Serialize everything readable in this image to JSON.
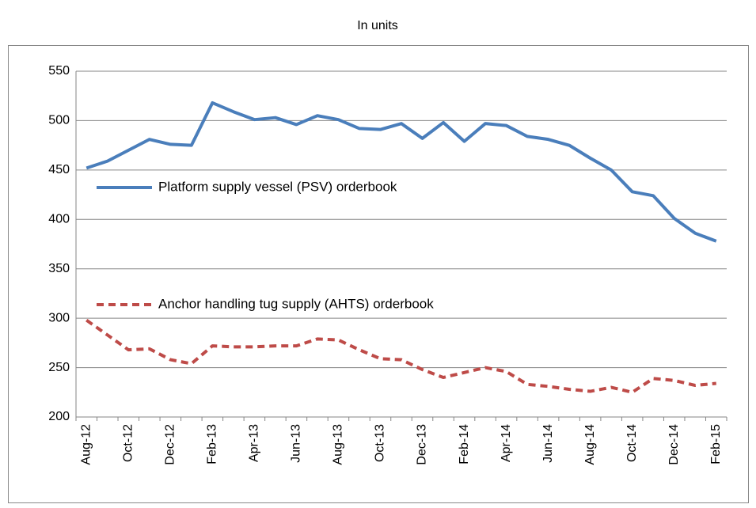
{
  "chart_data": {
    "type": "line",
    "title": "In units",
    "categories": [
      "Aug-12",
      null,
      "Oct-12",
      null,
      "Dec-12",
      null,
      "Feb-13",
      null,
      "Apr-13",
      null,
      "Jun-13",
      null,
      "Aug-13",
      null,
      "Oct-13",
      null,
      "Dec-13",
      null,
      "Feb-14",
      null,
      "Apr-14",
      null,
      "Jun-14",
      null,
      "Aug-14",
      null,
      "Oct-14",
      null,
      "Dec-14",
      null,
      "Feb-15"
    ],
    "series": [
      {
        "name": "Platform supply vessel (PSV) orderbook",
        "color": "#4a7ebb",
        "dash": false,
        "values": [
          452,
          459,
          470,
          481,
          476,
          475,
          518,
          509,
          501,
          503,
          496,
          505,
          501,
          492,
          491,
          497,
          482,
          498,
          479,
          497,
          495,
          484,
          481,
          475,
          462,
          450,
          428,
          424,
          401,
          386,
          378
        ]
      },
      {
        "name": "Anchor handling tug supply (AHTS) orderbook",
        "color": "#be4b48",
        "dash": true,
        "values": [
          298,
          283,
          268,
          269,
          258,
          254,
          272,
          271,
          271,
          272,
          272,
          279,
          278,
          268,
          259,
          258,
          248,
          240,
          245,
          250,
          246,
          233,
          231,
          228,
          226,
          230,
          225,
          239,
          237,
          232,
          234
        ]
      }
    ],
    "ylim": [
      200,
      550
    ],
    "yticks": [
      200,
      250,
      300,
      350,
      400,
      450,
      500,
      550
    ],
    "grid": true
  }
}
